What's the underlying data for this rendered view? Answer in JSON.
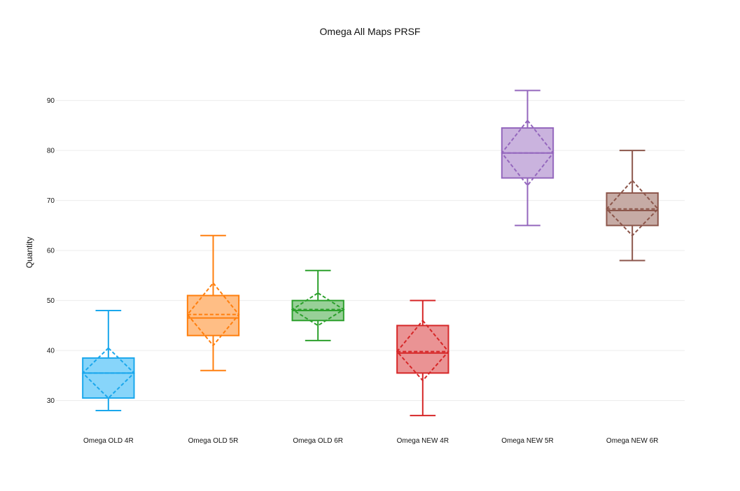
{
  "chart_data": {
    "type": "box",
    "title": "Omega All Maps PRSF",
    "xlabel": "",
    "ylabel": "Quantity",
    "ylim": [
      24.5,
      97.5
    ],
    "yticks": [
      30,
      40,
      50,
      60,
      70,
      80,
      90
    ],
    "grid": true,
    "legend": "none",
    "boxes": [
      {
        "category": "Omega OLD 4R",
        "color": "#1aa7ec",
        "fill": "#87d5fa",
        "min": 28,
        "q1": 30.5,
        "median": 35.5,
        "q3": 38.5,
        "max": 48,
        "mean": 35.5,
        "mean_minus_sd": 30.5,
        "mean_plus_sd": 40.5
      },
      {
        "category": "Omega OLD 5R",
        "color": "#ff7f0e",
        "fill": "#ffbe85",
        "min": 36,
        "q1": 43,
        "median": 46.5,
        "q3": 51,
        "max": 63,
        "mean": 47.2,
        "mean_minus_sd": 41,
        "mean_plus_sd": 53.5
      },
      {
        "category": "Omega OLD 6R",
        "color": "#2ca02c",
        "fill": "#98d098",
        "min": 42,
        "q1": 46,
        "median": 48,
        "q3": 50,
        "max": 56,
        "mean": 48.2,
        "mean_minus_sd": 45,
        "mean_plus_sd": 51.5
      },
      {
        "category": "Omega NEW 4R",
        "color": "#d62728",
        "fill": "#ea9394",
        "min": 27,
        "q1": 35.5,
        "median": 39.5,
        "q3": 45,
        "max": 50,
        "mean": 39.8,
        "mean_minus_sd": 34,
        "mean_plus_sd": 46
      },
      {
        "category": "Omega NEW 5R",
        "color": "#9467bd",
        "fill": "#cab3de",
        "min": 65,
        "q1": 74.5,
        "median": 79.5,
        "q3": 84.5,
        "max": 92,
        "mean": 79.5,
        "mean_minus_sd": 73,
        "mean_plus_sd": 86
      },
      {
        "category": "Omega NEW 6R",
        "color": "#8c564b",
        "fill": "#c6aba5",
        "min": 58,
        "q1": 65,
        "median": 68,
        "q3": 71.5,
        "max": 80,
        "mean": 68.3,
        "mean_minus_sd": 63,
        "mean_plus_sd": 74
      }
    ]
  }
}
